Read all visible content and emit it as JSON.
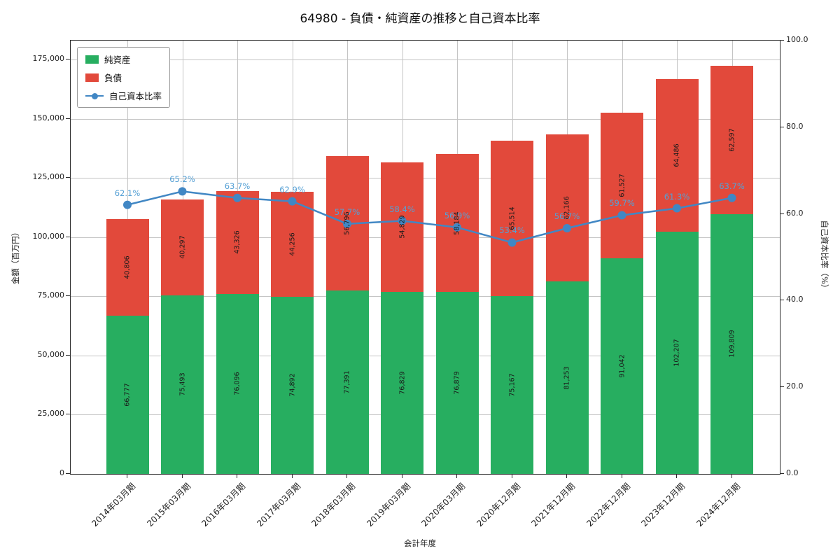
{
  "title": "64980 - 負債・純資産の推移と自己資本比率",
  "chart_data": {
    "type": "bar",
    "stacked": true,
    "title": "64980 - 負債・純資産の推移と自己資本比率",
    "xlabel": "会計年度",
    "ylabel_left": "金額（百万円）",
    "ylabel_right": "自己資本比率（%）",
    "categories": [
      "2014年03月期",
      "2015年03月期",
      "2016年03月期",
      "2017年03月期",
      "2018年03月期",
      "2019年03月期",
      "2020年03月期",
      "2020年12月期",
      "2021年12月期",
      "2022年12月期",
      "2023年12月期",
      "2024年12月期"
    ],
    "series": [
      {
        "name": "純資産",
        "type": "bar",
        "color": "#27ae60",
        "values": [
          66777,
          75493,
          76096,
          74892,
          77391,
          76829,
          76879,
          75167,
          81253,
          91042,
          102207,
          109809
        ]
      },
      {
        "name": "負債",
        "type": "bar",
        "color": "#e2493b",
        "values": [
          40806,
          40297,
          43326,
          44256,
          56796,
          54829,
          58184,
          65514,
          62166,
          61527,
          64486,
          62597
        ]
      },
      {
        "name": "自己資本比率",
        "type": "line",
        "color": "#4187c4",
        "values": [
          62.1,
          65.2,
          63.7,
          62.9,
          57.7,
          58.4,
          56.9,
          53.4,
          56.7,
          59.7,
          61.3,
          63.7
        ]
      }
    ],
    "ratio_labels": [
      "62.1%",
      "65.2%",
      "63.7%",
      "62.9%",
      "57.7%",
      "58.4%",
      "56.9%",
      "53.4%",
      "56.7%",
      "59.7%",
      "61.3%",
      "63.7%"
    ],
    "ratio_label_color": "#55a0d5",
    "grid": true,
    "legend_position": "upper left",
    "yticks_left": [
      "0",
      "25,000",
      "50,000",
      "75,000",
      "100,000",
      "125,000",
      "150,000",
      "175,000"
    ],
    "yticks_right": [
      "0.0",
      "20.0",
      "40.0",
      "60.0",
      "80.0",
      "100.0"
    ],
    "ylim_left": [
      0,
      183000
    ],
    "ylim_right": [
      0,
      100
    ]
  }
}
